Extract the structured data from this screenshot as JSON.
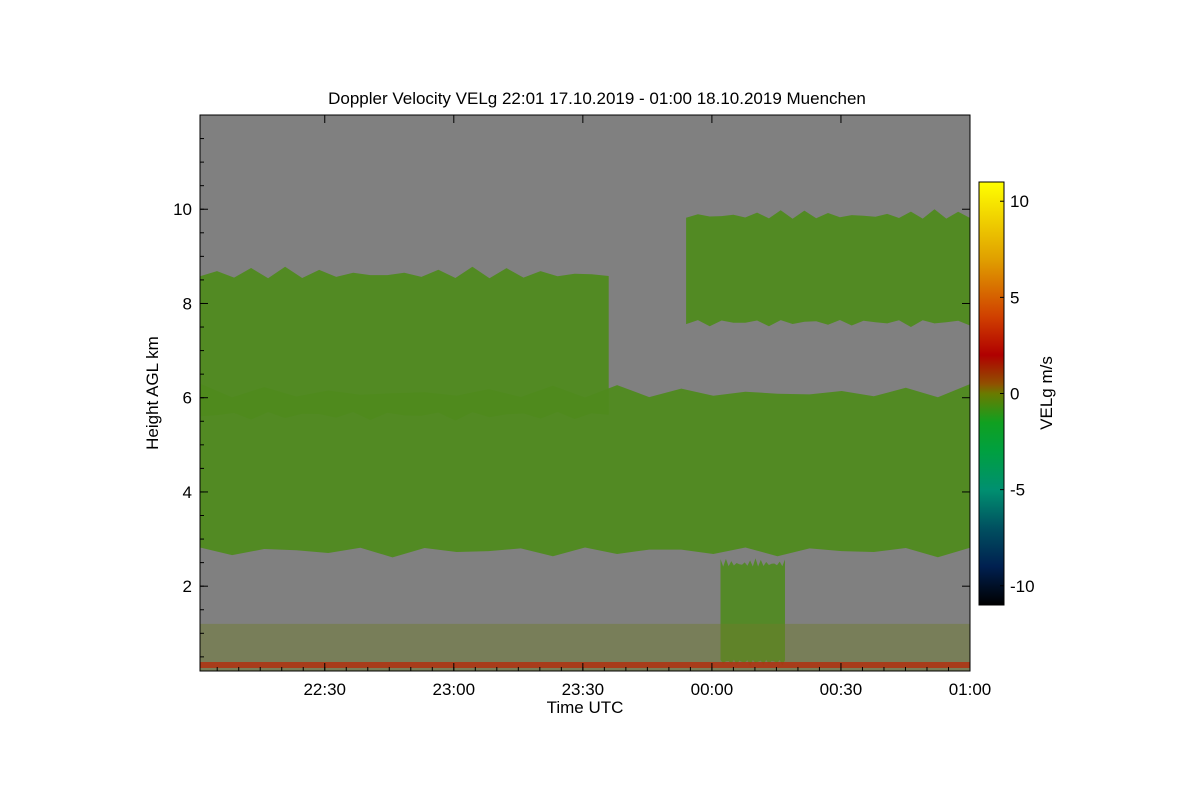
{
  "chart_data": {
    "type": "heatmap",
    "title": "Doppler Velocity VELg   22:01 17.10.2019 - 01:00 18.10.2019 Muenchen",
    "xlabel": "Time UTC",
    "ylabel": "Height AGL km",
    "x_range": [
      "22:01",
      "01:00"
    ],
    "x_tick_labels": [
      "22:30",
      "23:00",
      "23:30",
      "00:00",
      "00:30",
      "01:00"
    ],
    "x_tick_minutes_after_start": [
      29,
      59,
      89,
      119,
      149,
      179
    ],
    "x_total_minutes": 179,
    "ylim": [
      0.2,
      12.0
    ],
    "y_ticks": [
      2,
      4,
      6,
      8,
      10
    ],
    "colorbar": {
      "label": "VELg m/s",
      "range": [
        -11,
        11
      ],
      "ticks": [
        10,
        5,
        0,
        -5,
        -10
      ],
      "tick_labels": [
        "10",
        "5",
        "0",
        "-5",
        "-10"
      ],
      "colors": [
        {
          "value": 11,
          "color": "#ffff00"
        },
        {
          "value": 7,
          "color": "#e0a000"
        },
        {
          "value": 4,
          "color": "#d04000"
        },
        {
          "value": 2,
          "color": "#b00000"
        },
        {
          "value": 0.5,
          "color": "#905000"
        },
        {
          "value": 0,
          "color": "#6a7a00"
        },
        {
          "value": -1.5,
          "color": "#10a020"
        },
        {
          "value": -3,
          "color": "#00a040"
        },
        {
          "value": -5,
          "color": "#009070"
        },
        {
          "value": -7,
          "color": "#005060"
        },
        {
          "value": -9,
          "color": "#002050"
        },
        {
          "value": -11,
          "color": "#000000"
        }
      ]
    },
    "background_color": "#808080",
    "cloud_color": "#4f8a1e",
    "cloud_regions": [
      {
        "name": "main layer",
        "t_start": 0,
        "t_end": 179,
        "base_km": 2.6,
        "top_km": 6.3
      },
      {
        "name": "upper layer left",
        "t_start": 0,
        "t_end": 95,
        "base_km": 5.5,
        "top_km": 8.8
      },
      {
        "name": "upper layer right",
        "t_start": 113,
        "t_end": 179,
        "base_km": 7.5,
        "top_km": 10.0
      },
      {
        "name": "fall streak",
        "t_start": 121,
        "t_end": 136,
        "base_km": 0.3,
        "top_km": 2.6
      }
    ]
  }
}
